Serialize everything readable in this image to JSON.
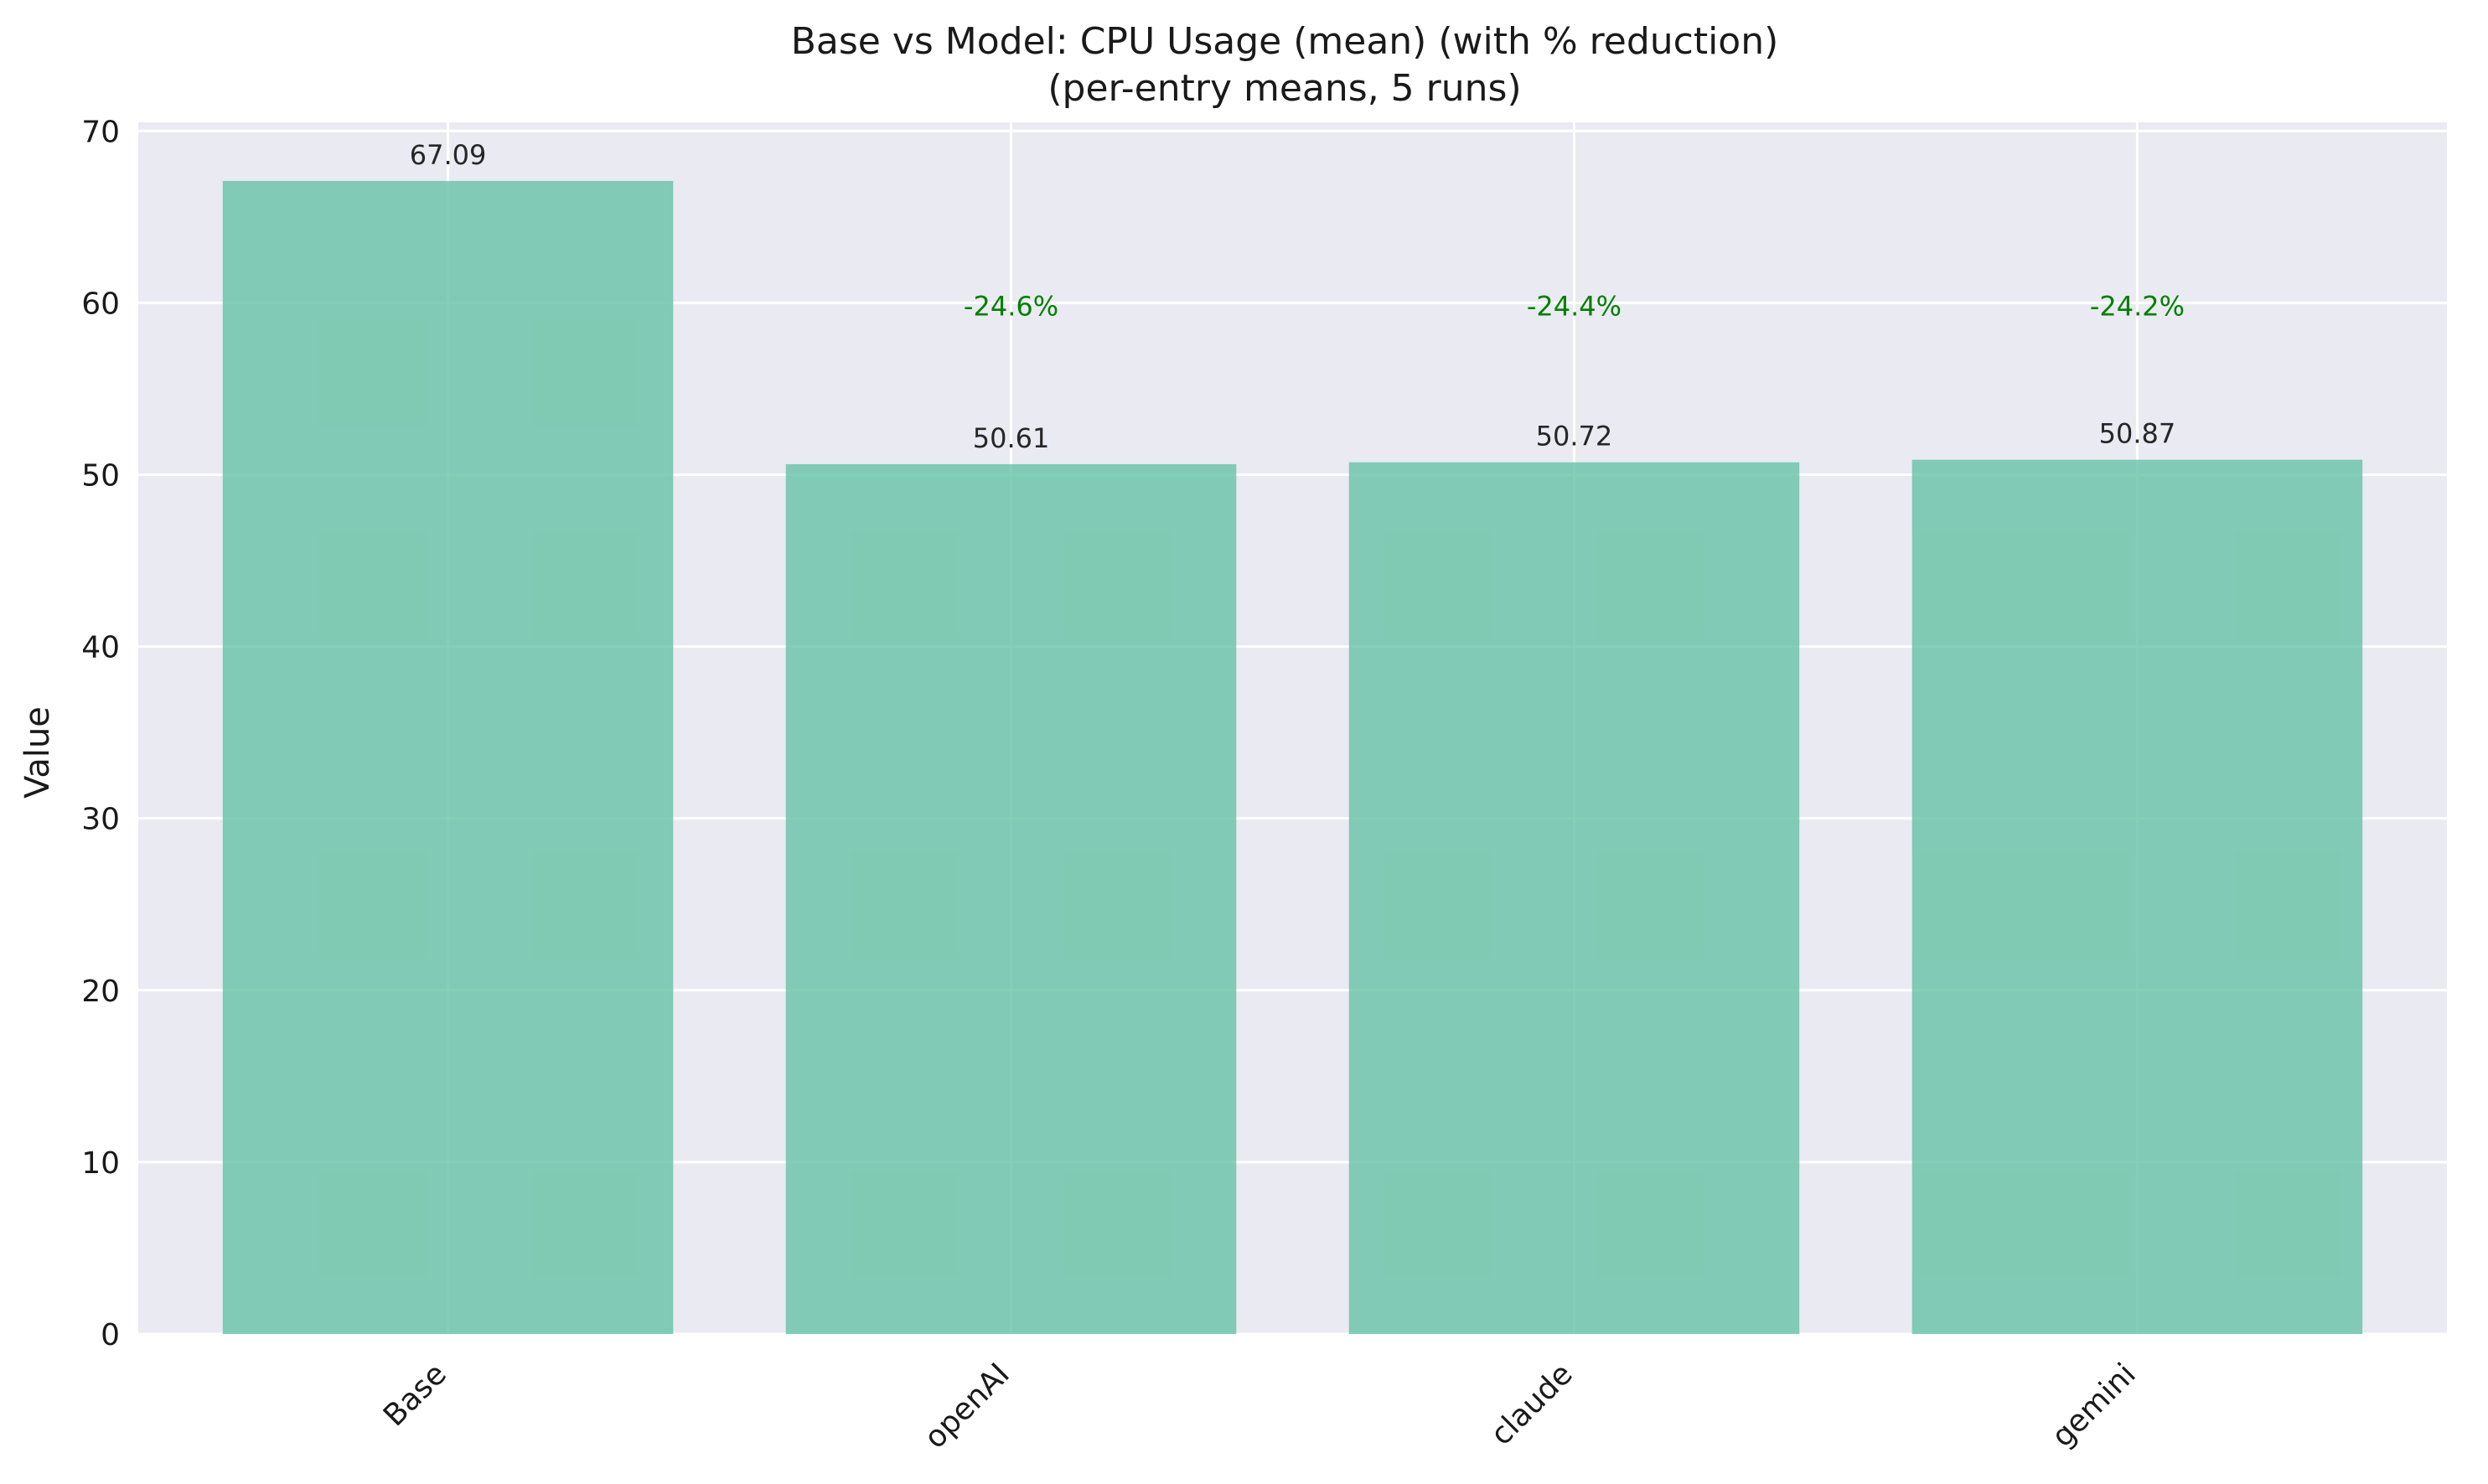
{
  "chart_data": {
    "type": "bar",
    "title": "Base vs Model: CPU Usage (mean) (with % reduction)",
    "subtitle": "(per-entry means, 5 runs)",
    "xlabel": "",
    "ylabel": "Value",
    "categories": [
      "Base",
      "openAI",
      "claude",
      "gemini"
    ],
    "values": [
      67.09,
      50.61,
      50.72,
      50.87
    ],
    "value_labels": [
      "67.09",
      "50.61",
      "50.72",
      "50.87"
    ],
    "reduction_labels": [
      "",
      "-24.6%",
      "-24.4%",
      "-24.2%"
    ],
    "reduction_label_y": 60,
    "ylim": [
      0,
      70.5
    ],
    "yticks": [
      0,
      10,
      20,
      30,
      40,
      50,
      60,
      70
    ],
    "grid": true,
    "legend": "none",
    "colors": {
      "bar": "#66c2a5",
      "background": "#eaeaf2",
      "grid": "#ffffff",
      "reduction_text": "#008000"
    }
  }
}
